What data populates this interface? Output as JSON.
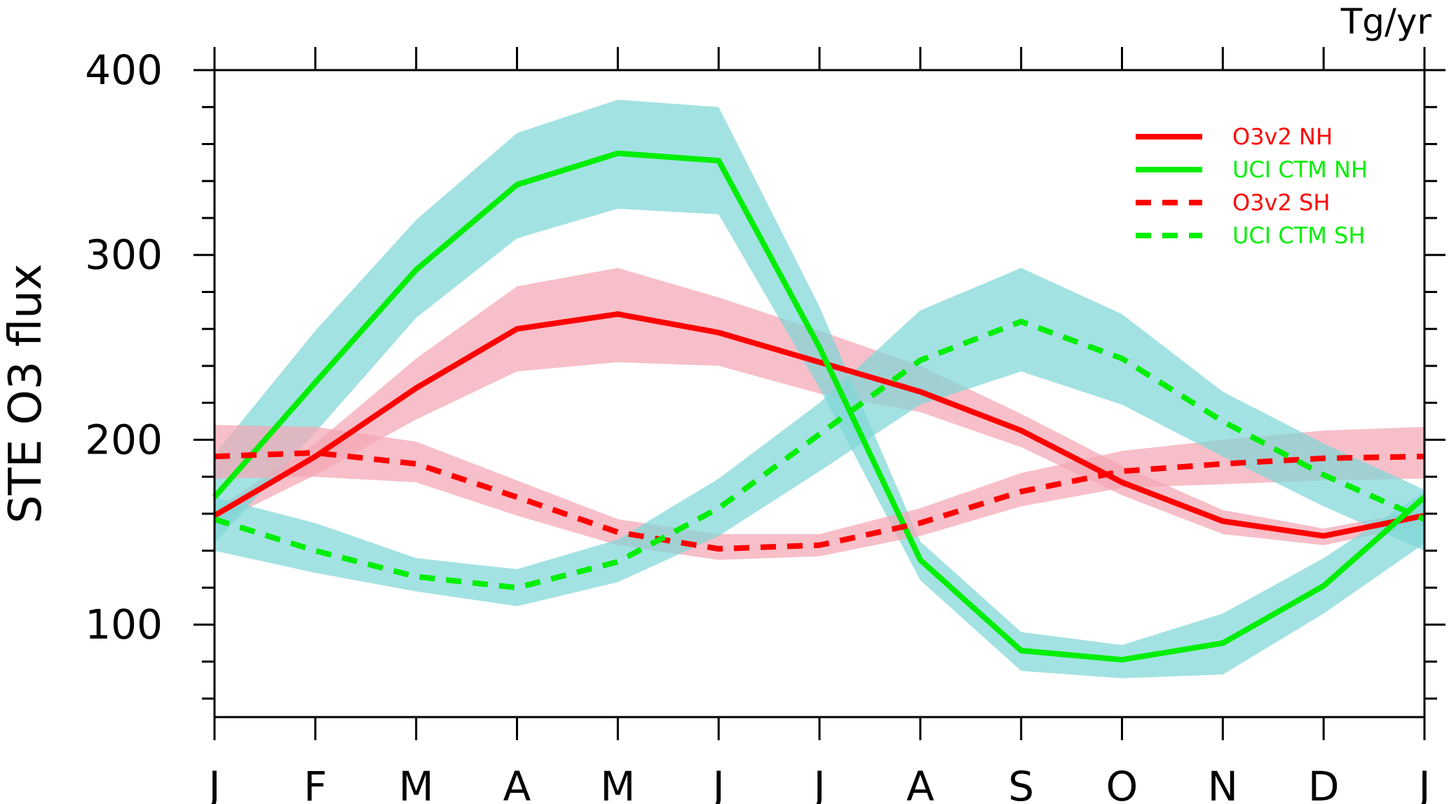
{
  "chart_data": {
    "type": "line",
    "ylabel": "STE O3 flux",
    "units": "Tg/yr",
    "categories": [
      "J",
      "F",
      "M",
      "A",
      "M",
      "J",
      "J",
      "A",
      "S",
      "O",
      "N",
      "D",
      "J"
    ],
    "ylim": [
      50,
      400
    ],
    "yticks": [
      100,
      200,
      300,
      400
    ],
    "grid": false,
    "legend_position": "top-right",
    "series": [
      {
        "name": "O3v2 NH",
        "color": "#ff0000",
        "dash": "solid",
        "band_color": "#f4a6b4",
        "values": [
          159,
          191,
          228,
          260,
          268,
          258,
          242,
          226,
          205,
          177,
          156,
          148,
          159
        ],
        "lower": [
          154,
          181,
          211,
          237,
          242,
          240,
          225,
          215,
          196,
          170,
          149,
          143,
          154
        ],
        "upper": [
          162,
          198,
          244,
          283,
          293,
          277,
          259,
          240,
          214,
          186,
          162,
          152,
          162
        ]
      },
      {
        "name": "UCI CTM NH",
        "color": "#00ee00",
        "dash": "solid",
        "band_color": "#7fd7d7",
        "values": [
          169,
          231,
          292,
          338,
          355,
          351,
          250,
          135,
          86,
          81,
          90,
          121,
          169
        ],
        "lower": [
          144,
          204,
          266,
          309,
          325,
          322,
          228,
          124,
          75,
          71,
          73,
          106,
          144
        ],
        "upper": [
          192,
          259,
          319,
          366,
          384,
          380,
          272,
          145,
          96,
          89,
          106,
          136,
          172
        ]
      },
      {
        "name": "O3v2 SH",
        "color": "#ff0000",
        "dash": "dashed",
        "band_color": "#f4a6b4",
        "values": [
          191,
          193,
          187,
          169,
          150,
          141,
          143,
          155,
          172,
          183,
          187,
          190,
          191
        ],
        "lower": [
          179,
          180,
          177,
          159,
          143,
          135,
          137,
          148,
          164,
          174,
          176,
          178,
          179
        ],
        "upper": [
          208,
          207,
          199,
          178,
          157,
          149,
          149,
          163,
          182,
          194,
          200,
          205,
          207
        ]
      },
      {
        "name": "UCI CTM SH",
        "color": "#00ee00",
        "dash": "dashed",
        "band_color": "#7fd7d7",
        "values": [
          157,
          140,
          126,
          120,
          134,
          163,
          203,
          243,
          264,
          244,
          210,
          181,
          157
        ],
        "lower": [
          140,
          128,
          118,
          110,
          123,
          148,
          183,
          219,
          237,
          219,
          191,
          164,
          140
        ],
        "upper": [
          169,
          155,
          136,
          130,
          146,
          179,
          220,
          270,
          293,
          268,
          226,
          198,
          173
        ]
      }
    ]
  }
}
